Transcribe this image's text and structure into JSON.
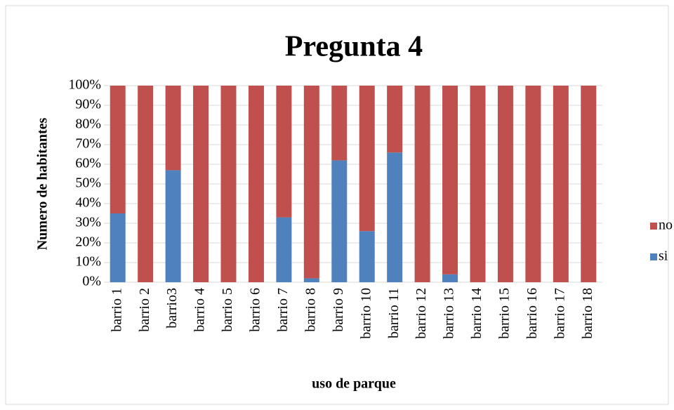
{
  "chart_data": {
    "type": "stacked_bar",
    "title": "Pregunta 4",
    "x_label": "uso de parque",
    "y_label": "Numero de habitantes",
    "categories": [
      "barrio 1",
      "barrio 2",
      "barrio3",
      "barrio 4",
      "barrio 5",
      "barrio 6",
      "barrio 7",
      "barrio 8",
      "barrio 9",
      "barrio 10",
      "barrio 11",
      "barrio 12",
      "barrio 13",
      "barrio 14",
      "barrio 15",
      "barrio 16",
      "barrio 17",
      "barrio 18"
    ],
    "series": [
      {
        "name": "si",
        "color": "#4f81bd",
        "values": [
          35,
          0,
          57,
          0,
          0,
          0,
          33,
          2,
          62,
          26,
          66,
          0,
          4,
          0,
          0,
          0,
          0,
          0
        ]
      },
      {
        "name": "no",
        "color": "#c0504d",
        "values": [
          65,
          100,
          43,
          100,
          100,
          100,
          67,
          98,
          38,
          74,
          34,
          100,
          96,
          100,
          100,
          100,
          100,
          100
        ]
      }
    ],
    "ylim": [
      0,
      100
    ],
    "yticks": [
      {
        "value": 0,
        "label": "0%"
      },
      {
        "value": 10,
        "label": "10%"
      },
      {
        "value": 20,
        "label": "20%"
      },
      {
        "value": 30,
        "label": "30%"
      },
      {
        "value": 40,
        "label": "40%"
      },
      {
        "value": 50,
        "label": "50%"
      },
      {
        "value": 60,
        "label": "60%"
      },
      {
        "value": 70,
        "label": "70%"
      },
      {
        "value": 80,
        "label": "80%"
      },
      {
        "value": 90,
        "label": "90%"
      },
      {
        "value": 100,
        "label": "100%"
      }
    ],
    "grid": true,
    "legend": "right"
  }
}
